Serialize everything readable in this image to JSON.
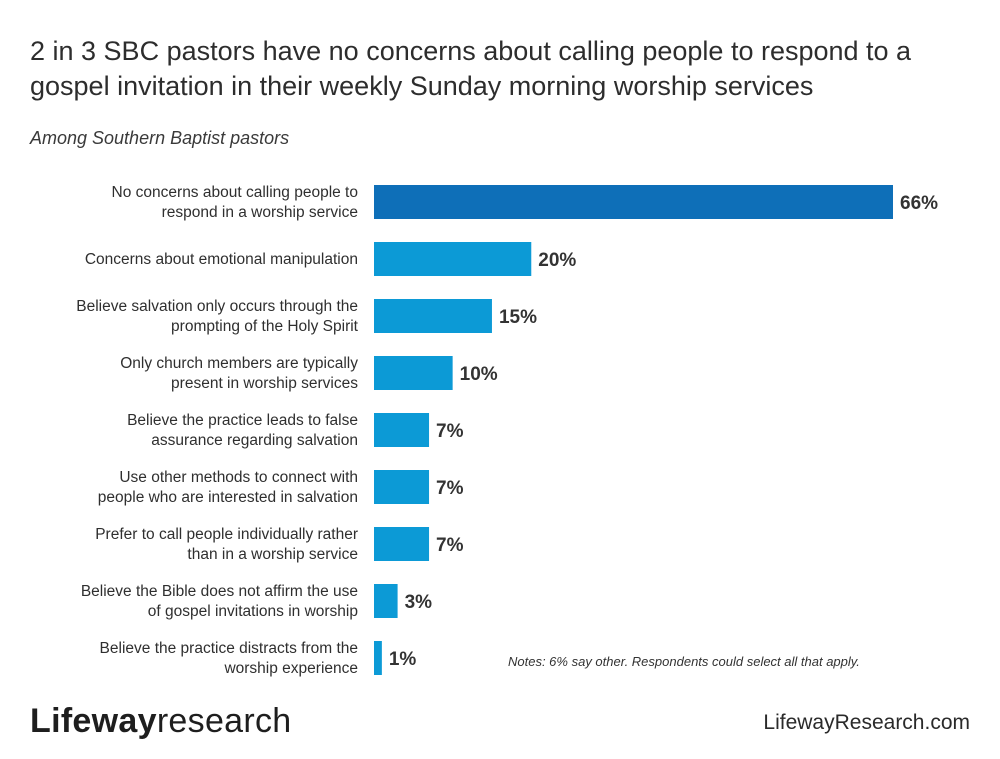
{
  "chart_data": {
    "type": "bar",
    "orientation": "horizontal",
    "title": "2 in 3 SBC pastors have no concerns about calling people to respond to a gospel invitation in their weekly Sunday morning worship services",
    "subtitle": "Among Southern Baptist pastors",
    "categories": [
      [
        "No concerns about calling people to",
        "respond in a worship service"
      ],
      [
        "Concerns about emotional manipulation"
      ],
      [
        "Believe salvation only occurs through the",
        "prompting of the Holy Spirit"
      ],
      [
        "Only church members are typically",
        "present in worship services"
      ],
      [
        "Believe the practice leads to false",
        "assurance regarding salvation"
      ],
      [
        "Use other methods to connect with",
        "people who are interested in salvation"
      ],
      [
        "Prefer to call people individually rather",
        "than in a worship service"
      ],
      [
        "Believe the Bible does not affirm the use",
        "of gospel invitations in worship"
      ],
      [
        "Believe the practice distracts from the",
        "worship experience"
      ]
    ],
    "values": [
      66,
      20,
      15,
      10,
      7,
      7,
      7,
      3,
      1
    ],
    "value_labels": [
      "66%",
      "20%",
      "15%",
      "10%",
      "7%",
      "7%",
      "7%",
      "3%",
      "1%"
    ],
    "xlim": [
      0,
      66
    ],
    "grid": false,
    "colors": {
      "highlight": "#0e6fb8",
      "bar": "#0c9ad6"
    }
  },
  "notes": "Notes: 6% say other. Respondents could select all that apply.",
  "footer": {
    "logo_brand": "Lifeway",
    "logo_word": "research",
    "site": "LifewayResearch.com"
  }
}
